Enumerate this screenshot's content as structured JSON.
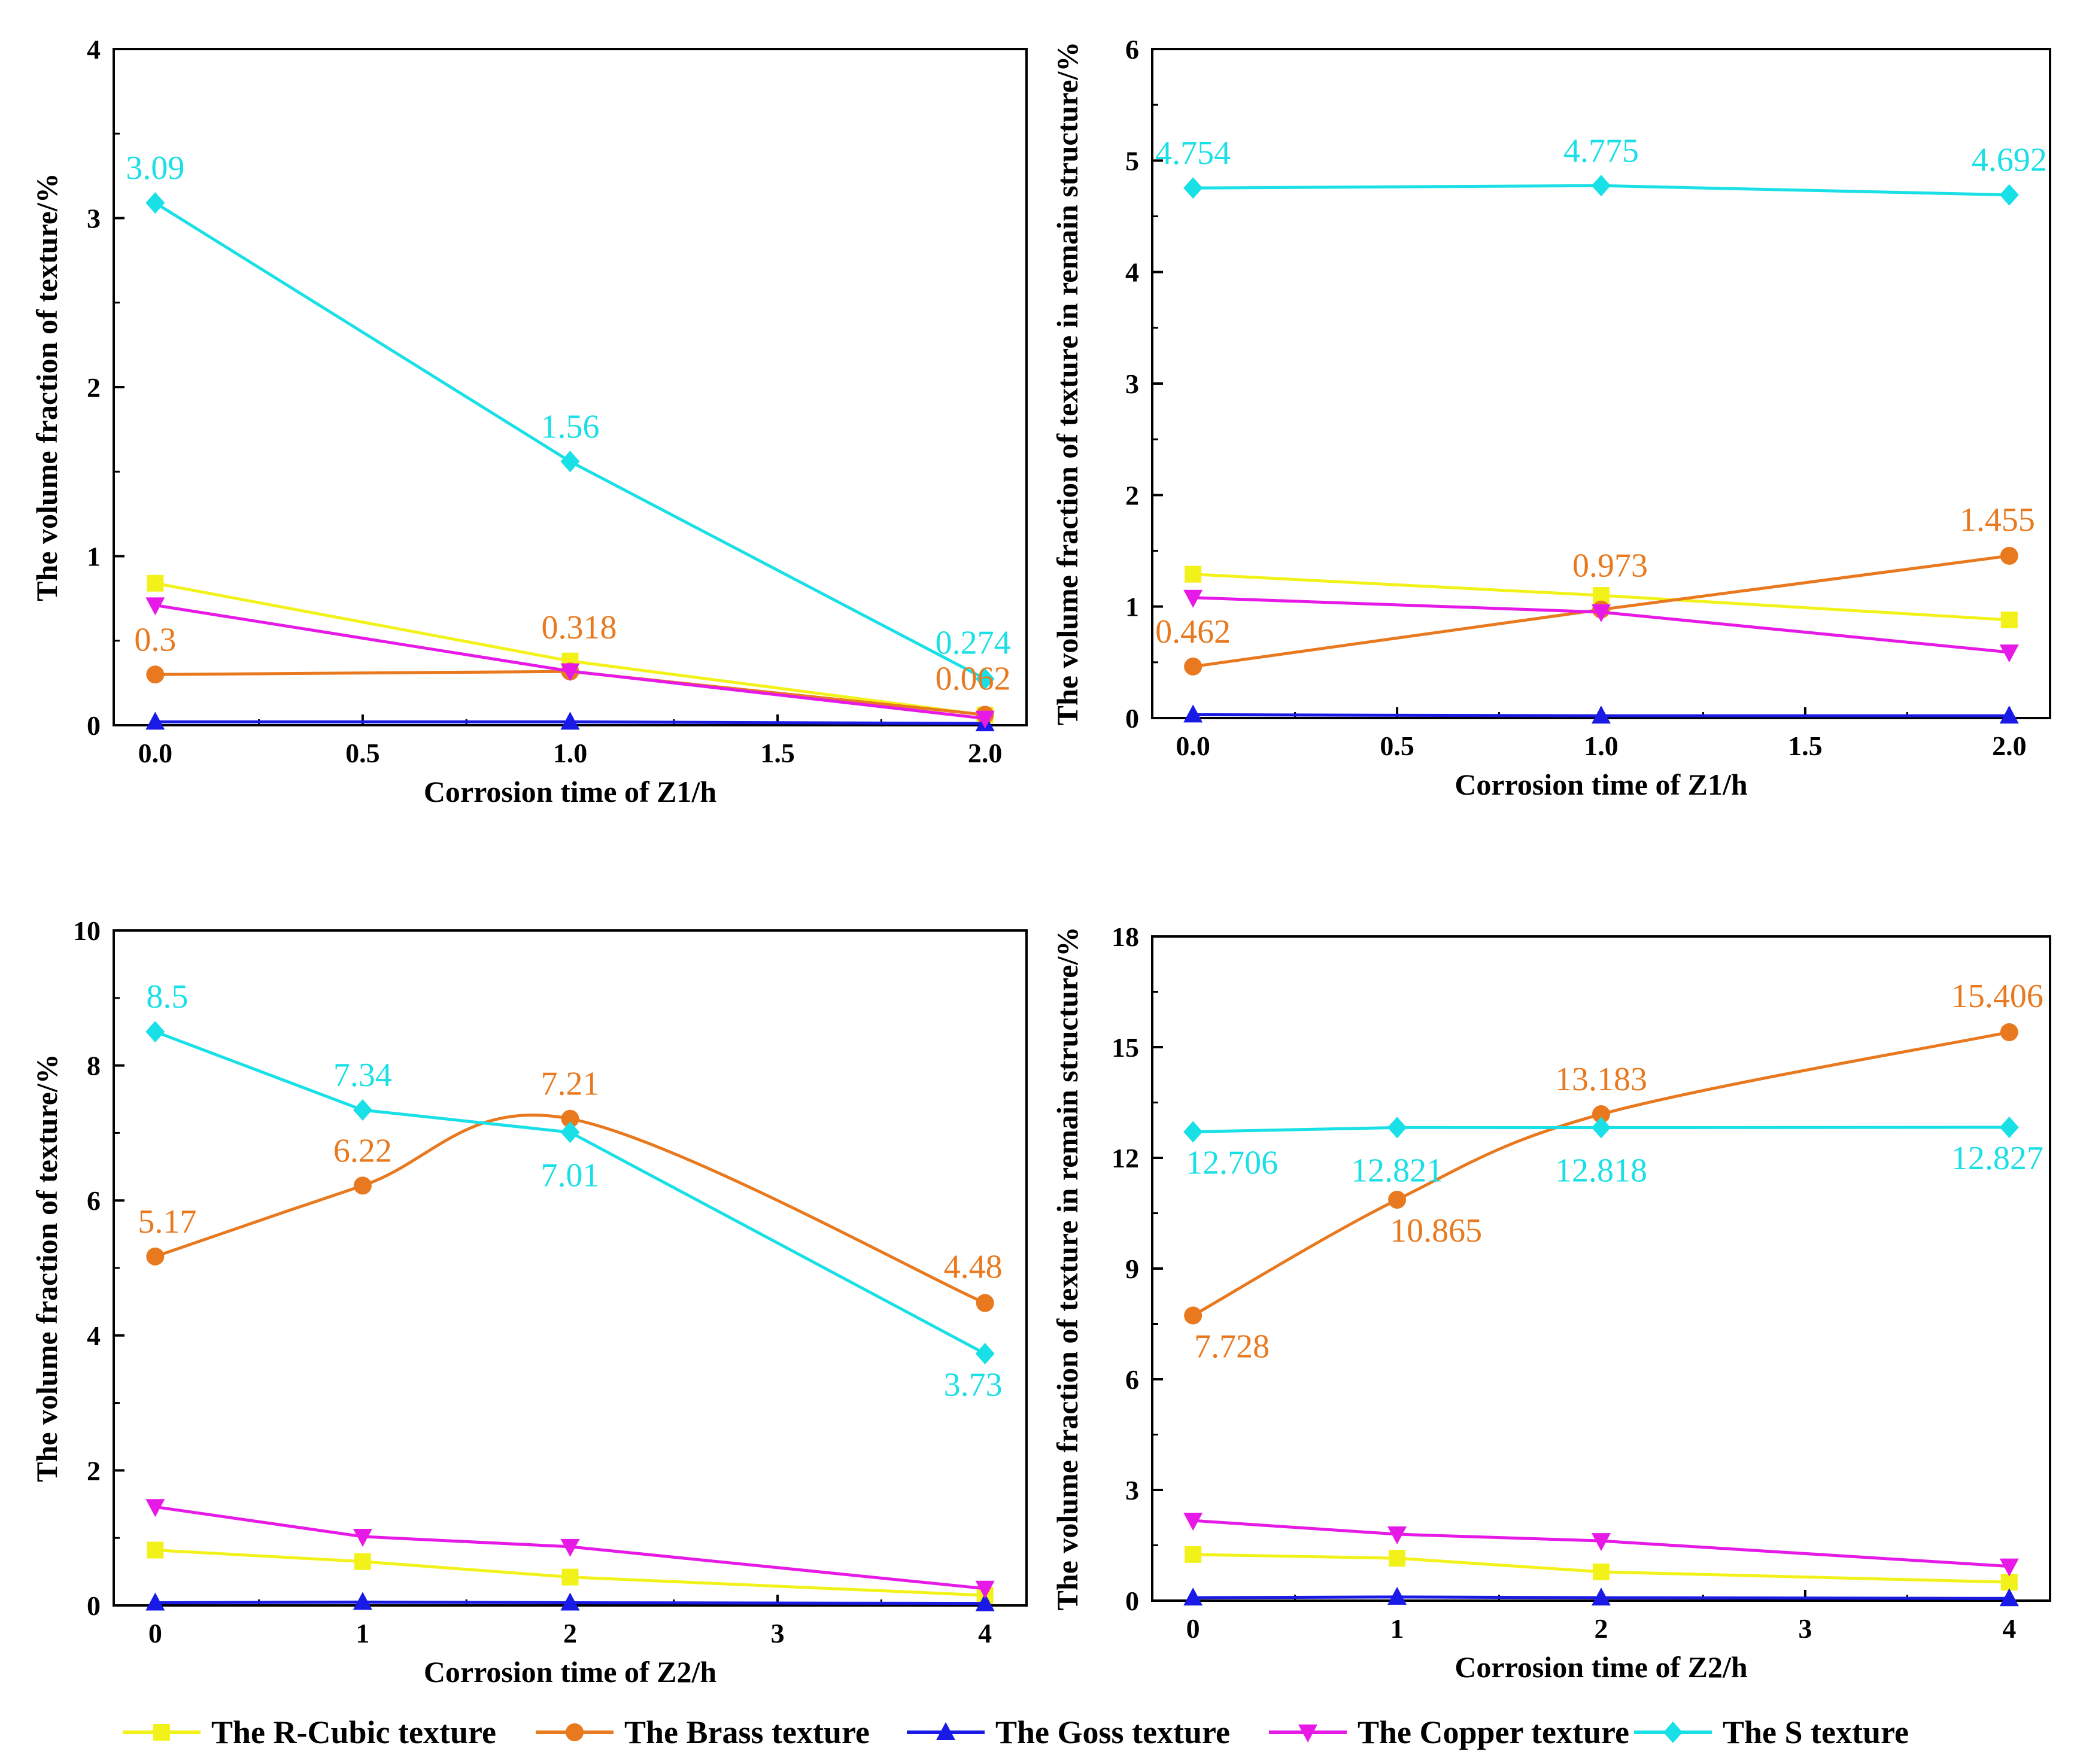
{
  "legend": [
    {
      "key": "rcubic",
      "label": "The R-Cubic texture",
      "color": "#f2f21a",
      "marker": "square"
    },
    {
      "key": "brass",
      "label": "The Brass texture",
      "color": "#e8791f",
      "marker": "circle"
    },
    {
      "key": "goss",
      "label": "The Goss texture",
      "color": "#1a1ae6",
      "marker": "triangle-up"
    },
    {
      "key": "copper",
      "label": "The Copper texture",
      "color": "#e619e6",
      "marker": "triangle-down"
    },
    {
      "key": "s",
      "label": "The S texture",
      "color": "#19dfe6",
      "marker": "diamond"
    }
  ],
  "chart_data": [
    {
      "type": "line",
      "xlabel": "Corrosion time of Z1/h",
      "ylabel": "The volume fraction of texture/%",
      "xlim": [
        -0.1,
        2.1
      ],
      "ylim": [
        0,
        4
      ],
      "xticks": [
        0.0,
        0.5,
        1.0,
        1.5,
        2.0
      ],
      "xtick_labels": [
        "0.0",
        "0.5",
        "1.0",
        "1.5",
        "2.0"
      ],
      "yticks": [
        0,
        1,
        2,
        3,
        4
      ],
      "ytick_labels": [
        "0",
        "1",
        "2",
        "3",
        "4"
      ],
      "x": [
        0,
        1,
        2
      ],
      "series": [
        {
          "key": "rcubic",
          "values": [
            0.84,
            0.38,
            0.06
          ]
        },
        {
          "key": "brass",
          "values": [
            0.3,
            0.318,
            0.062
          ]
        },
        {
          "key": "goss",
          "values": [
            0.02,
            0.02,
            0.01
          ]
        },
        {
          "key": "copper",
          "values": [
            0.71,
            0.32,
            0.04
          ]
        },
        {
          "key": "s",
          "values": [
            3.09,
            1.56,
            0.274
          ]
        }
      ],
      "annotations": [
        {
          "text": "3.09",
          "series": "s",
          "x": 0,
          "y": 3.09,
          "pos": "above"
        },
        {
          "text": "1.56",
          "series": "s",
          "x": 1,
          "y": 1.56,
          "pos": "above"
        },
        {
          "text": "0.274",
          "series": "s",
          "x": 2,
          "y": 0.274,
          "pos": "above-left"
        },
        {
          "text": "0.3",
          "series": "brass",
          "x": 0,
          "y": 0.3,
          "pos": "above"
        },
        {
          "text": "0.318",
          "series": "brass",
          "x": 1,
          "y": 0.318,
          "pos": "above-high"
        },
        {
          "text": "0.062",
          "series": "brass",
          "x": 2,
          "y": 0.062,
          "pos": "above-left"
        }
      ]
    },
    {
      "type": "line",
      "xlabel": "Corrosion time of Z1/h",
      "ylabel": "The volume fraction of texture in remain structure/%",
      "xlim": [
        -0.1,
        2.1
      ],
      "ylim": [
        0,
        6
      ],
      "xticks": [
        0.0,
        0.5,
        1.0,
        1.5,
        2.0
      ],
      "xtick_labels": [
        "0.0",
        "0.5",
        "1.0",
        "1.5",
        "2.0"
      ],
      "yticks": [
        0,
        1,
        2,
        3,
        4,
        5,
        6
      ],
      "ytick_labels": [
        "0",
        "1",
        "2",
        "3",
        "4",
        "5",
        "6"
      ],
      "x": [
        0,
        1,
        2
      ],
      "series": [
        {
          "key": "rcubic",
          "values": [
            1.29,
            1.1,
            0.88
          ]
        },
        {
          "key": "brass",
          "values": [
            0.462,
            0.973,
            1.455
          ]
        },
        {
          "key": "goss",
          "values": [
            0.03,
            0.02,
            0.02
          ]
        },
        {
          "key": "copper",
          "values": [
            1.08,
            0.95,
            0.59
          ]
        },
        {
          "key": "s",
          "values": [
            4.754,
            4.775,
            4.692
          ]
        }
      ],
      "annotations": [
        {
          "text": "4.754",
          "series": "s",
          "x": 0,
          "y": 4.754,
          "pos": "above"
        },
        {
          "text": "4.775",
          "series": "s",
          "x": 1,
          "y": 4.775,
          "pos": "above"
        },
        {
          "text": "4.692",
          "series": "s",
          "x": 2,
          "y": 4.692,
          "pos": "above"
        },
        {
          "text": "0.462",
          "series": "brass",
          "x": 0,
          "y": 0.462,
          "pos": "above"
        },
        {
          "text": "0.973",
          "series": "brass",
          "x": 1,
          "y": 0.973,
          "pos": "above-high"
        },
        {
          "text": "1.455",
          "series": "brass",
          "x": 2,
          "y": 1.455,
          "pos": "above-left"
        }
      ]
    },
    {
      "type": "line",
      "xlabel": "Corrosion time of Z2/h",
      "ylabel": "The volume fraction of texture/%",
      "xlim": [
        -0.2,
        4.2
      ],
      "ylim": [
        0,
        10
      ],
      "xticks": [
        0,
        1,
        2,
        3,
        4
      ],
      "xtick_labels": [
        "0",
        "1",
        "2",
        "3",
        "4"
      ],
      "yticks": [
        0,
        2,
        4,
        6,
        8,
        10
      ],
      "ytick_labels": [
        "0",
        "2",
        "4",
        "6",
        "8",
        "10"
      ],
      "x": [
        0,
        1,
        2,
        4
      ],
      "series": [
        {
          "key": "rcubic",
          "values": [
            0.82,
            0.65,
            0.42,
            0.15
          ]
        },
        {
          "key": "brass",
          "values": [
            5.17,
            6.22,
            7.21,
            4.48
          ],
          "smooth": true
        },
        {
          "key": "goss",
          "values": [
            0.04,
            0.05,
            0.04,
            0.03
          ]
        },
        {
          "key": "copper",
          "values": [
            1.46,
            1.02,
            0.87,
            0.25
          ]
        },
        {
          "key": "s",
          "values": [
            8.5,
            7.34,
            7.01,
            3.73
          ]
        }
      ],
      "annotations": [
        {
          "text": "8.5",
          "series": "s",
          "x": 0,
          "y": 8.5,
          "pos": "above-right"
        },
        {
          "text": "7.34",
          "series": "s",
          "x": 1,
          "y": 7.34,
          "pos": "above"
        },
        {
          "text": "7.01",
          "series": "s",
          "x": 2,
          "y": 7.01,
          "pos": "below"
        },
        {
          "text": "3.73",
          "series": "s",
          "x": 4,
          "y": 3.73,
          "pos": "below-left"
        },
        {
          "text": "5.17",
          "series": "brass",
          "x": 0,
          "y": 5.17,
          "pos": "above-right"
        },
        {
          "text": "6.22",
          "series": "brass",
          "x": 1,
          "y": 6.22,
          "pos": "above"
        },
        {
          "text": "7.21",
          "series": "brass",
          "x": 2,
          "y": 7.21,
          "pos": "above"
        },
        {
          "text": "4.48",
          "series": "brass",
          "x": 4,
          "y": 4.48,
          "pos": "above-left"
        }
      ]
    },
    {
      "type": "line",
      "xlabel": "Corrosion time of Z2/h",
      "ylabel": "The volume fraction of texture in remain structure/%",
      "xlim": [
        -0.2,
        4.2
      ],
      "ylim": [
        0,
        18
      ],
      "xticks": [
        0,
        1,
        2,
        3,
        4
      ],
      "xtick_labels": [
        "0",
        "1",
        "2",
        "3",
        "4"
      ],
      "yticks": [
        0,
        3,
        6,
        9,
        12,
        15,
        18
      ],
      "ytick_labels": [
        "0",
        "3",
        "6",
        "9",
        "12",
        "15",
        "18"
      ],
      "x": [
        0,
        1,
        2,
        4
      ],
      "series": [
        {
          "key": "rcubic",
          "values": [
            1.25,
            1.15,
            0.78,
            0.5
          ]
        },
        {
          "key": "brass",
          "values": [
            7.728,
            10.865,
            13.183,
            15.406
          ],
          "smooth": true
        },
        {
          "key": "goss",
          "values": [
            0.08,
            0.1,
            0.08,
            0.06
          ]
        },
        {
          "key": "copper",
          "values": [
            2.17,
            1.8,
            1.62,
            0.93
          ]
        },
        {
          "key": "s",
          "values": [
            12.706,
            12.821,
            12.818,
            12.827
          ]
        }
      ],
      "annotations": [
        {
          "text": "12.706",
          "series": "s",
          "x": 0,
          "y": 12.706,
          "pos": "below-right"
        },
        {
          "text": "12.821",
          "series": "s",
          "x": 1,
          "y": 12.821,
          "pos": "below"
        },
        {
          "text": "12.818",
          "series": "s",
          "x": 2,
          "y": 12.818,
          "pos": "below"
        },
        {
          "text": "12.827",
          "series": "s",
          "x": 4,
          "y": 12.827,
          "pos": "below-left"
        },
        {
          "text": "7.728",
          "series": "brass",
          "x": 0,
          "y": 7.728,
          "pos": "below-right"
        },
        {
          "text": "10.865",
          "series": "brass",
          "x": 1,
          "y": 10.865,
          "pos": "below-right"
        },
        {
          "text": "13.183",
          "series": "brass",
          "x": 2,
          "y": 13.183,
          "pos": "above"
        },
        {
          "text": "15.406",
          "series": "brass",
          "x": 4,
          "y": 15.406,
          "pos": "above-left"
        }
      ]
    }
  ]
}
